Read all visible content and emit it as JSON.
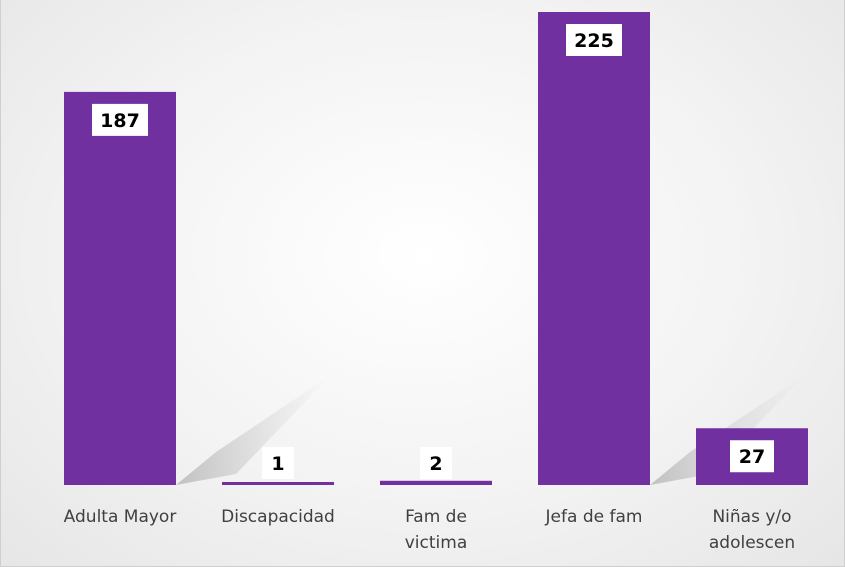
{
  "chart_data": {
    "type": "bar",
    "categories": [
      [
        "Adulta Mayor"
      ],
      [
        "Discapacidad"
      ],
      [
        "Fam de",
        "victima"
      ],
      [
        "Jefa de fam"
      ],
      [
        "Niñas y/o",
        "adolescen"
      ]
    ],
    "values": [
      187,
      1,
      2,
      225,
      27
    ],
    "data_labels": [
      "187",
      "1",
      "2",
      "225",
      "27"
    ],
    "title": "",
    "xlabel": "",
    "ylabel": "",
    "ylim": [
      0,
      225
    ],
    "grid": false,
    "legend": "none",
    "bar_color": "#7030a0",
    "label_bg": "#ffffff"
  }
}
